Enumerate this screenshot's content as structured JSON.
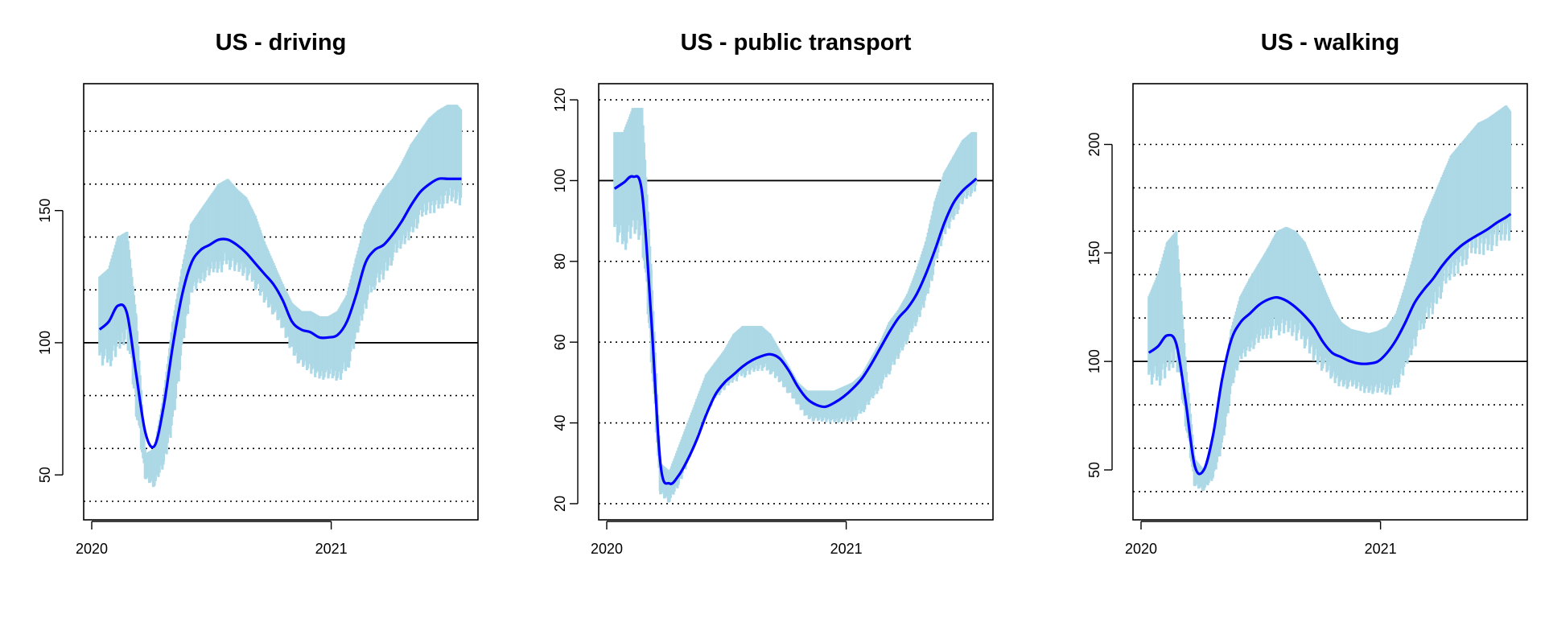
{
  "colors": {
    "raw": "#add8e6",
    "smooth": "#0000ff",
    "baseline": "#000000",
    "grid": "#000000",
    "background": "#ffffff"
  },
  "chart_data": [
    {
      "type": "line",
      "title": "US - driving",
      "xlabel": "",
      "ylabel": "",
      "x_ticks": [
        "2020",
        "2021"
      ],
      "y_ticks": [
        50,
        100,
        150
      ],
      "xlim": [
        "2020-01-01",
        "2021-08-01"
      ],
      "ylim": [
        33,
        198
      ],
      "grid": {
        "dotted_y": [
          40,
          60,
          80,
          120,
          140,
          160,
          180
        ],
        "solid_y": 100
      },
      "series": [
        {
          "role": "raw",
          "x": [
            "2020-01-13",
            "2020-01-27",
            "2020-02-10",
            "2020-02-24",
            "2020-03-09",
            "2020-03-23",
            "2020-04-06",
            "2020-04-20",
            "2020-05-04",
            "2020-05-18",
            "2020-06-01",
            "2020-06-15",
            "2020-06-29",
            "2020-07-13",
            "2020-07-27",
            "2020-08-10",
            "2020-08-24",
            "2020-09-07",
            "2020-09-21",
            "2020-10-05",
            "2020-10-19",
            "2020-11-02",
            "2020-11-16",
            "2020-11-30",
            "2020-12-14",
            "2020-12-28",
            "2021-01-11",
            "2021-01-25",
            "2021-02-08",
            "2021-02-22",
            "2021-03-08",
            "2021-03-22",
            "2021-04-05",
            "2021-04-19",
            "2021-05-03",
            "2021-05-17",
            "2021-05-31",
            "2021-06-14",
            "2021-06-28",
            "2021-07-12",
            "2021-07-19"
          ],
          "low": [
            92,
            90,
            95,
            100,
            72,
            48,
            45,
            52,
            68,
            95,
            118,
            122,
            125,
            126,
            128,
            126,
            124,
            120,
            115,
            110,
            104,
            96,
            90,
            88,
            86,
            86,
            85,
            88,
            100,
            112,
            120,
            124,
            130,
            135,
            140,
            145,
            148,
            150,
            152,
            152,
            152
          ],
          "high": [
            125,
            128,
            140,
            142,
            110,
            58,
            60,
            80,
            108,
            128,
            145,
            150,
            155,
            160,
            162,
            158,
            155,
            148,
            138,
            130,
            122,
            115,
            112,
            112,
            110,
            110,
            112,
            118,
            132,
            145,
            152,
            158,
            162,
            168,
            175,
            180,
            185,
            188,
            190,
            190,
            188
          ]
        },
        {
          "role": "smooth",
          "x": [
            "2020-01-13",
            "2020-01-27",
            "2020-02-10",
            "2020-02-24",
            "2020-03-09",
            "2020-03-23",
            "2020-04-06",
            "2020-04-20",
            "2020-05-04",
            "2020-05-18",
            "2020-06-01",
            "2020-06-15",
            "2020-06-29",
            "2020-07-13",
            "2020-07-27",
            "2020-08-10",
            "2020-08-24",
            "2020-09-07",
            "2020-09-21",
            "2020-10-05",
            "2020-10-19",
            "2020-11-02",
            "2020-11-16",
            "2020-11-30",
            "2020-12-14",
            "2020-12-28",
            "2021-01-11",
            "2021-01-25",
            "2021-02-08",
            "2021-02-22",
            "2021-03-08",
            "2021-03-22",
            "2021-04-05",
            "2021-04-19",
            "2021-05-03",
            "2021-05-17",
            "2021-05-31",
            "2021-06-14",
            "2021-06-28",
            "2021-07-12",
            "2021-07-19"
          ],
          "values": [
            105,
            108,
            114,
            111,
            88,
            66,
            61,
            76,
            99,
            118,
            130,
            135,
            137,
            139,
            139,
            137,
            134,
            130,
            126,
            122,
            116,
            108,
            105,
            104,
            102,
            102,
            103,
            108,
            118,
            130,
            135,
            137,
            141,
            146,
            152,
            157,
            160,
            162,
            162,
            162,
            162
          ]
        }
      ]
    },
    {
      "type": "line",
      "title": "US - public transport",
      "xlabel": "",
      "ylabel": "",
      "x_ticks": [
        "2020",
        "2021"
      ],
      "y_ticks": [
        20,
        40,
        60,
        80,
        100,
        120
      ],
      "xlim": [
        "2020-01-01",
        "2021-08-01"
      ],
      "ylim": [
        16,
        124
      ],
      "grid": {
        "dotted_y": [
          20,
          40,
          60,
          80,
          120
        ],
        "solid_y": 100
      },
      "series": [
        {
          "role": "raw",
          "x": [
            "2020-01-13",
            "2020-01-27",
            "2020-02-10",
            "2020-02-24",
            "2020-03-09",
            "2020-03-23",
            "2020-04-06",
            "2020-04-20",
            "2020-05-04",
            "2020-05-18",
            "2020-06-01",
            "2020-06-15",
            "2020-06-29",
            "2020-07-13",
            "2020-07-27",
            "2020-08-10",
            "2020-08-24",
            "2020-09-07",
            "2020-09-21",
            "2020-10-05",
            "2020-10-19",
            "2020-11-02",
            "2020-11-16",
            "2020-11-30",
            "2020-12-14",
            "2020-12-28",
            "2021-01-11",
            "2021-01-25",
            "2021-02-08",
            "2021-02-22",
            "2021-03-08",
            "2021-03-22",
            "2021-04-05",
            "2021-04-19",
            "2021-05-03",
            "2021-05-17",
            "2021-05-31",
            "2021-06-14",
            "2021-06-28",
            "2021-07-12",
            "2021-07-19"
          ],
          "low": [
            86,
            82,
            86,
            84,
            55,
            22,
            20,
            24,
            30,
            36,
            42,
            46,
            48,
            50,
            51,
            52,
            53,
            52,
            50,
            47,
            44,
            41,
            40,
            40,
            40,
            40,
            40,
            42,
            45,
            48,
            52,
            56,
            60,
            64,
            70,
            78,
            86,
            90,
            94,
            96,
            98
          ],
          "high": [
            112,
            112,
            118,
            118,
            78,
            30,
            28,
            34,
            40,
            46,
            52,
            55,
            58,
            62,
            64,
            64,
            64,
            62,
            58,
            54,
            50,
            48,
            48,
            48,
            48,
            49,
            50,
            52,
            56,
            60,
            65,
            68,
            72,
            78,
            85,
            95,
            102,
            106,
            110,
            112,
            112
          ]
        },
        {
          "role": "smooth",
          "x": [
            "2020-01-13",
            "2020-01-27",
            "2020-02-10",
            "2020-02-24",
            "2020-03-09",
            "2020-03-23",
            "2020-04-06",
            "2020-04-20",
            "2020-05-04",
            "2020-05-18",
            "2020-06-01",
            "2020-06-15",
            "2020-06-29",
            "2020-07-13",
            "2020-07-27",
            "2020-08-10",
            "2020-08-24",
            "2020-09-07",
            "2020-09-21",
            "2020-10-05",
            "2020-10-19",
            "2020-11-02",
            "2020-11-16",
            "2020-11-30",
            "2020-12-14",
            "2020-12-28",
            "2021-01-11",
            "2021-01-25",
            "2021-02-08",
            "2021-02-22",
            "2021-03-08",
            "2021-03-22",
            "2021-04-05",
            "2021-04-19",
            "2021-05-03",
            "2021-05-17",
            "2021-05-31",
            "2021-06-14",
            "2021-06-28",
            "2021-07-12",
            "2021-07-19"
          ],
          "values": [
            98,
            99.5,
            101,
            97,
            66,
            30,
            25,
            27,
            31,
            36,
            42,
            47,
            50,
            52,
            54,
            55.5,
            56.5,
            57,
            56,
            53,
            49,
            46,
            44.5,
            44,
            45,
            46.5,
            48.5,
            51,
            54.5,
            58.5,
            62.5,
            66,
            68.5,
            72,
            77,
            83,
            89.5,
            94.5,
            97.5,
            99.5,
            100.5
          ]
        }
      ]
    },
    {
      "type": "line",
      "title": "US - walking",
      "xlabel": "",
      "ylabel": "",
      "x_ticks": [
        "2020",
        "2021"
      ],
      "y_ticks": [
        50,
        100,
        150,
        200
      ],
      "xlim": [
        "2020-01-01",
        "2021-08-01"
      ],
      "ylim": [
        27,
        228
      ],
      "grid": {
        "dotted_y": [
          40,
          60,
          80,
          120,
          140,
          160,
          180,
          200
        ],
        "solid_y": 100
      },
      "series": [
        {
          "role": "raw",
          "x": [
            "2020-01-13",
            "2020-01-27",
            "2020-02-10",
            "2020-02-24",
            "2020-03-09",
            "2020-03-23",
            "2020-04-06",
            "2020-04-20",
            "2020-05-04",
            "2020-05-18",
            "2020-06-01",
            "2020-06-15",
            "2020-06-29",
            "2020-07-13",
            "2020-07-27",
            "2020-08-10",
            "2020-08-24",
            "2020-09-07",
            "2020-09-21",
            "2020-10-05",
            "2020-10-19",
            "2020-11-02",
            "2020-11-16",
            "2020-11-30",
            "2020-12-14",
            "2020-12-28",
            "2021-01-11",
            "2021-01-25",
            "2021-02-08",
            "2021-02-22",
            "2021-03-08",
            "2021-03-22",
            "2021-04-05",
            "2021-04-19",
            "2021-05-03",
            "2021-05-17",
            "2021-05-31",
            "2021-06-14",
            "2021-06-28",
            "2021-07-12",
            "2021-07-19"
          ],
          "low": [
            90,
            88,
            92,
            98,
            70,
            42,
            40,
            45,
            60,
            85,
            100,
            104,
            108,
            110,
            112,
            112,
            110,
            106,
            100,
            95,
            90,
            88,
            87,
            86,
            85,
            85,
            84,
            86,
            95,
            106,
            115,
            122,
            130,
            136,
            142,
            146,
            148,
            150,
            152,
            155,
            156
          ],
          "high": [
            130,
            140,
            155,
            160,
            100,
            55,
            50,
            62,
            88,
            115,
            130,
            138,
            145,
            152,
            160,
            162,
            160,
            155,
            145,
            135,
            125,
            118,
            115,
            114,
            113,
            114,
            116,
            122,
            135,
            150,
            165,
            175,
            185,
            195,
            200,
            205,
            210,
            212,
            215,
            218,
            215
          ]
        },
        {
          "role": "smooth",
          "x": [
            "2020-01-13",
            "2020-01-27",
            "2020-02-10",
            "2020-02-24",
            "2020-03-09",
            "2020-03-23",
            "2020-04-06",
            "2020-04-20",
            "2020-05-04",
            "2020-05-18",
            "2020-06-01",
            "2020-06-15",
            "2020-06-29",
            "2020-07-13",
            "2020-07-27",
            "2020-08-10",
            "2020-08-24",
            "2020-09-07",
            "2020-09-21",
            "2020-10-05",
            "2020-10-19",
            "2020-11-02",
            "2020-11-16",
            "2020-11-30",
            "2020-12-14",
            "2020-12-28",
            "2021-01-11",
            "2021-01-25",
            "2021-02-08",
            "2021-02-22",
            "2021-03-08",
            "2021-03-22",
            "2021-04-05",
            "2021-04-19",
            "2021-05-03",
            "2021-05-17",
            "2021-05-31",
            "2021-06-14",
            "2021-06-28",
            "2021-07-12",
            "2021-07-19"
          ],
          "values": [
            104,
            107,
            112,
            108,
            82,
            52,
            50,
            66,
            92,
            110,
            118,
            122,
            126,
            128.5,
            129.5,
            128,
            125,
            121,
            116,
            109,
            104,
            102,
            100,
            99,
            99,
            100,
            104,
            110,
            118,
            127,
            133,
            138,
            144,
            149,
            153,
            156,
            158.5,
            161,
            164,
            166.5,
            168
          ]
        }
      ]
    }
  ]
}
